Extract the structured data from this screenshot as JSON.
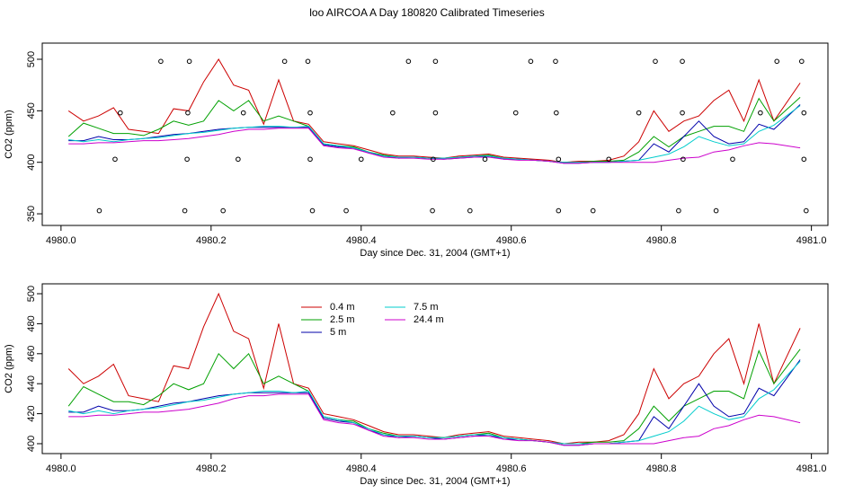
{
  "title": "loo AIRCOA A  Day 180820  Calibrated Timeseries",
  "chart_data": [
    {
      "type": "line",
      "xlabel": "Day since Dec. 31, 2004 (GMT+1)",
      "ylabel": "CO2 (ppm)",
      "x": [
        4980.01,
        4980.03,
        4980.05,
        4980.07,
        4980.09,
        4980.11,
        4980.13,
        4980.15,
        4980.17,
        4980.19,
        4980.21,
        4980.23,
        4980.25,
        4980.27,
        4980.29,
        4980.31,
        4980.33,
        4980.35,
        4980.37,
        4980.39,
        4980.41,
        4980.43,
        4980.45,
        4980.47,
        4980.49,
        4980.51,
        4980.53,
        4980.55,
        4980.57,
        4980.59,
        4980.61,
        4980.63,
        4980.65,
        4980.67,
        4980.69,
        4980.71,
        4980.73,
        4980.75,
        4980.77,
        4980.79,
        4980.81,
        4980.83,
        4980.85,
        4980.87,
        4980.89,
        4980.91,
        4980.93,
        4980.95,
        4980.985
      ],
      "series": [
        {
          "name": "0.4 m",
          "color": "#cc0000",
          "values": [
            450,
            440,
            445,
            453,
            432,
            430,
            428,
            452,
            450,
            478,
            500,
            475,
            470,
            437,
            480,
            440,
            437,
            420,
            418,
            416,
            412,
            408,
            406,
            406,
            405,
            404,
            406,
            407,
            408,
            405,
            404,
            403,
            402,
            400,
            401,
            401,
            402,
            406,
            420,
            450,
            430,
            440,
            445,
            460,
            470,
            440,
            480,
            440,
            477
          ]
        },
        {
          "name": "2.5 m",
          "color": "#00a000",
          "values": [
            425,
            438,
            433,
            428,
            428,
            426,
            432,
            440,
            436,
            440,
            460,
            450,
            460,
            440,
            445,
            440,
            435,
            418,
            416,
            415,
            410,
            407,
            405,
            405,
            404,
            404,
            405,
            406,
            407,
            404,
            403,
            402,
            401,
            400,
            400,
            401,
            401,
            402,
            410,
            425,
            415,
            425,
            430,
            435,
            435,
            430,
            462,
            440,
            463
          ]
        },
        {
          "name": "5 m",
          "color": "#0000aa",
          "values": [
            421,
            421,
            425,
            422,
            422,
            423,
            425,
            427,
            428,
            430,
            432,
            433,
            434,
            434,
            434,
            434,
            434,
            417,
            415,
            414,
            409,
            406,
            404,
            405,
            404,
            403,
            404,
            405,
            406,
            403,
            403,
            402,
            401,
            399,
            399,
            400,
            400,
            401,
            402,
            418,
            410,
            425,
            440,
            425,
            418,
            420,
            437,
            432,
            456
          ]
        },
        {
          "name": "7.5 m",
          "color": "#00cccc",
          "values": [
            422,
            420,
            422,
            420,
            422,
            423,
            424,
            426,
            428,
            429,
            431,
            433,
            434,
            435,
            435,
            434,
            435,
            418,
            416,
            414,
            410,
            406,
            405,
            405,
            404,
            404,
            405,
            406,
            406,
            404,
            403,
            402,
            401,
            400,
            400,
            400,
            400,
            401,
            402,
            405,
            408,
            415,
            425,
            420,
            416,
            418,
            430,
            436,
            455
          ]
        },
        {
          "name": "24.4 m",
          "color": "#cc00cc",
          "values": [
            418,
            418,
            419,
            419,
            420,
            421,
            421,
            422,
            423,
            425,
            427,
            430,
            432,
            432,
            433,
            433,
            433,
            416,
            414,
            413,
            409,
            405,
            404,
            404,
            403,
            403,
            404,
            405,
            405,
            403,
            402,
            402,
            401,
            399,
            399,
            400,
            400,
            400,
            400,
            400,
            402,
            404,
            405,
            410,
            412,
            416,
            419,
            418,
            414
          ]
        }
      ],
      "points": {
        "color": "#000000",
        "x": [
          4980.133,
          4980.171,
          4980.298,
          4980.329,
          4980.463,
          4980.499,
          4980.626,
          4980.659,
          4980.792,
          4980.828,
          4980.954,
          4980.987,
          4980.079,
          4980.169,
          4980.243,
          4980.332,
          4980.442,
          4980.499,
          4980.606,
          4980.66,
          4980.77,
          4980.828,
          4980.932,
          4980.99,
          4980.072,
          4980.168,
          4980.236,
          4980.332,
          4980.4,
          4980.496,
          4980.565,
          4980.663,
          4980.73,
          4980.829,
          4980.895,
          4980.99,
          4980.051,
          4980.165,
          4980.216,
          4980.335,
          4980.38,
          4980.495,
          4980.545,
          4980.663,
          4980.709,
          4980.823,
          4980.873,
          4980.993
        ],
        "y": [
          498,
          498,
          498,
          498,
          498,
          498,
          498,
          498,
          498,
          498,
          498,
          498,
          448,
          448,
          448,
          448,
          448,
          448,
          448,
          448,
          448,
          448,
          448,
          448,
          403,
          403,
          403,
          403,
          403,
          403,
          403,
          403,
          403,
          403,
          403,
          403,
          353,
          353,
          353,
          353,
          353,
          353,
          353,
          353,
          353,
          353,
          353,
          353
        ]
      },
      "xlim": [
        4979.975,
        4981.022
      ],
      "ylim": [
        338.7,
        515.7
      ],
      "xticks": [
        {
          "value": 4980,
          "label": "4980.0"
        },
        4980.2,
        4980.4,
        4980.6,
        4980.8,
        {
          "value": 4981,
          "label": "4981.0"
        }
      ],
      "yticks": [
        350,
        400,
        450,
        500
      ],
      "legend": false
    },
    {
      "type": "line",
      "xlabel": "Day since Dec. 31, 2004 (GMT+1)",
      "ylabel": "CO2 (ppm)",
      "x": [
        4980.01,
        4980.03,
        4980.05,
        4980.07,
        4980.09,
        4980.11,
        4980.13,
        4980.15,
        4980.17,
        4980.19,
        4980.21,
        4980.23,
        4980.25,
        4980.27,
        4980.29,
        4980.31,
        4980.33,
        4980.35,
        4980.37,
        4980.39,
        4980.41,
        4980.43,
        4980.45,
        4980.47,
        4980.49,
        4980.51,
        4980.53,
        4980.55,
        4980.57,
        4980.59,
        4980.61,
        4980.63,
        4980.65,
        4980.67,
        4980.69,
        4980.71,
        4980.73,
        4980.75,
        4980.77,
        4980.79,
        4980.81,
        4980.83,
        4980.85,
        4980.87,
        4980.89,
        4980.91,
        4980.93,
        4980.95,
        4980.985
      ],
      "series": [
        {
          "name": "0.4 m",
          "color": "#cc0000",
          "values": [
            450,
            440,
            445,
            453,
            432,
            430,
            428,
            452,
            450,
            478,
            500,
            475,
            470,
            437,
            480,
            440,
            437,
            420,
            418,
            416,
            412,
            408,
            406,
            406,
            405,
            404,
            406,
            407,
            408,
            405,
            404,
            403,
            402,
            400,
            401,
            401,
            402,
            406,
            420,
            450,
            430,
            440,
            445,
            460,
            470,
            440,
            480,
            440,
            477
          ]
        },
        {
          "name": "2.5 m",
          "color": "#00a000",
          "values": [
            425,
            438,
            433,
            428,
            428,
            426,
            432,
            440,
            436,
            440,
            460,
            450,
            460,
            440,
            445,
            440,
            435,
            418,
            416,
            415,
            410,
            407,
            405,
            405,
            404,
            404,
            405,
            406,
            407,
            404,
            403,
            402,
            401,
            400,
            400,
            401,
            401,
            402,
            410,
            425,
            415,
            425,
            430,
            435,
            435,
            430,
            462,
            440,
            463
          ]
        },
        {
          "name": "5 m",
          "color": "#0000aa",
          "values": [
            421,
            421,
            425,
            422,
            422,
            423,
            425,
            427,
            428,
            430,
            432,
            433,
            434,
            434,
            434,
            434,
            434,
            417,
            415,
            414,
            409,
            406,
            404,
            405,
            404,
            403,
            404,
            405,
            406,
            403,
            403,
            402,
            401,
            399,
            399,
            400,
            400,
            401,
            402,
            418,
            410,
            425,
            440,
            425,
            418,
            420,
            437,
            432,
            456
          ]
        },
        {
          "name": "7.5 m",
          "color": "#00cccc",
          "values": [
            422,
            420,
            422,
            420,
            422,
            423,
            424,
            426,
            428,
            429,
            431,
            433,
            434,
            435,
            435,
            434,
            435,
            418,
            416,
            414,
            410,
            406,
            405,
            405,
            404,
            404,
            405,
            406,
            406,
            404,
            403,
            402,
            401,
            400,
            400,
            400,
            400,
            401,
            402,
            405,
            408,
            415,
            425,
            420,
            416,
            418,
            430,
            436,
            455
          ]
        },
        {
          "name": "24.4 m",
          "color": "#cc00cc",
          "values": [
            418,
            418,
            419,
            419,
            420,
            421,
            421,
            422,
            423,
            425,
            427,
            430,
            432,
            432,
            433,
            433,
            433,
            416,
            414,
            413,
            409,
            405,
            404,
            404,
            403,
            403,
            404,
            405,
            405,
            403,
            402,
            402,
            401,
            399,
            399,
            400,
            400,
            400,
            400,
            400,
            402,
            404,
            405,
            410,
            412,
            416,
            419,
            418,
            414
          ]
        }
      ],
      "xlim": [
        4979.975,
        4981.022
      ],
      "ylim": [
        393.4,
        506.6
      ],
      "xticks": [
        {
          "value": 4980,
          "label": "4980.0"
        },
        4980.2,
        4980.4,
        4980.6,
        4980.8,
        {
          "value": 4981,
          "label": "4981.0"
        }
      ],
      "yticks": [
        400,
        420,
        440,
        460,
        480,
        500
      ],
      "legend": "top-left"
    }
  ]
}
